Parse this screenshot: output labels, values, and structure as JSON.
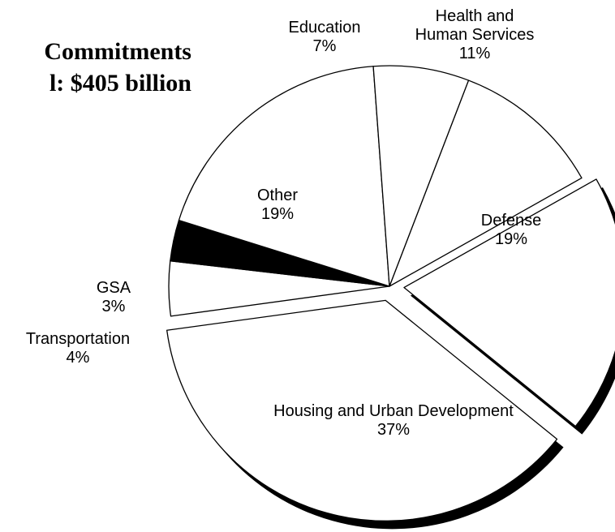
{
  "chart_data": {
    "type": "pie",
    "title_lines": [
      "Commitments",
      "l: $405 billion"
    ],
    "slices": [
      {
        "name_lines": [
          "Health and",
          "Human Services"
        ],
        "pct_label": "11%",
        "value": 11,
        "fill": "#ffffff",
        "exploded": false
      },
      {
        "name_lines": [
          "Defense"
        ],
        "pct_label": "19%",
        "value": 19,
        "fill": "#ffffff",
        "exploded": true
      },
      {
        "name_lines": [
          "Housing and Urban Development"
        ],
        "pct_label": "37%",
        "value": 37,
        "fill": "#ffffff",
        "exploded": true
      },
      {
        "name_lines": [
          "Transportation"
        ],
        "pct_label": "4%",
        "value": 4,
        "fill": "#ffffff",
        "exploded": false
      },
      {
        "name_lines": [
          "GSA"
        ],
        "pct_label": "3%",
        "value": 3,
        "fill": "#000000",
        "exploded": false
      },
      {
        "name_lines": [
          "Other"
        ],
        "pct_label": "19%",
        "value": 19,
        "fill": "#ffffff",
        "exploded": false
      },
      {
        "name_lines": [
          "Education"
        ],
        "pct_label": "7%",
        "value": 7,
        "fill": "#ffffff",
        "exploded": false
      }
    ]
  }
}
